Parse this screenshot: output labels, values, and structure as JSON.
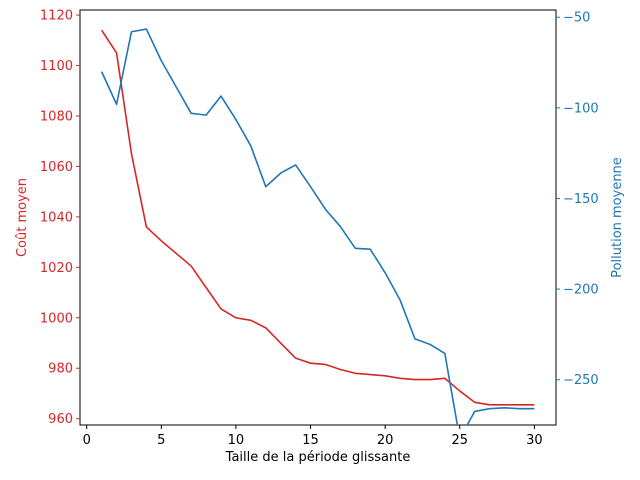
{
  "chart_data": {
    "type": "line",
    "xlabel": "Taille de la période glissante",
    "xlim": [
      -0.45,
      31.45
    ],
    "xticks": [
      0,
      5,
      10,
      15,
      20,
      25,
      30
    ],
    "x": [
      1,
      2,
      3,
      4,
      5,
      6,
      7,
      8,
      9,
      10,
      11,
      12,
      13,
      14,
      15,
      16,
      17,
      18,
      19,
      20,
      21,
      22,
      23,
      24,
      25,
      26,
      27,
      28,
      29,
      30
    ],
    "y_left": {
      "label": "Coût moyen",
      "color": "#d62728",
      "ylim": [
        957.5,
        1122.0
      ],
      "ticks": [
        960,
        980,
        1000,
        1020,
        1040,
        1060,
        1080,
        1100,
        1120
      ],
      "values": [
        1114,
        1105,
        1065,
        1036,
        1030.5,
        1025.5,
        1020.5,
        1012,
        1003.5,
        1000,
        999,
        996,
        990,
        984,
        982,
        981.5,
        979.5,
        978,
        977.5,
        977,
        976,
        975.5,
        975.5,
        976,
        971,
        966.5,
        965.5,
        965.5,
        965.5,
        965.5
      ]
    },
    "y_right": {
      "label": "Pollution moyenne",
      "color": "#1f77b4",
      "ylim": [
        -275.0,
        -46.0
      ],
      "ticks": [
        -250,
        -200,
        -150,
        -100,
        -50
      ],
      "values": [
        -80,
        -98,
        -58,
        -56.5,
        -74,
        -88.5,
        -103,
        -104,
        -93.5,
        -106.5,
        -121,
        -143.5,
        -136,
        -131.5,
        -143.5,
        -156,
        -165.5,
        -177.5,
        -178,
        -191,
        -206,
        -227.5,
        -230.5,
        -235.5,
        -282.5,
        -267.5,
        -266,
        -265.5,
        -266,
        -266
      ]
    }
  }
}
